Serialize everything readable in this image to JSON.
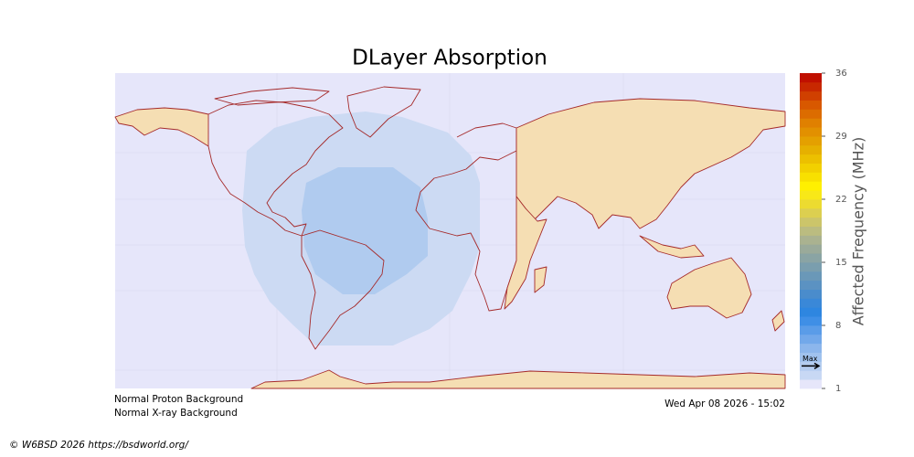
{
  "title": "DLayer Absorption",
  "colorbar": {
    "label": "Affected Frequency (MHz)",
    "lim": [
      1,
      36
    ],
    "ticks": [
      1,
      8,
      15,
      22,
      29,
      36
    ],
    "colors": [
      "#e6e6fa",
      "#c8d8f4",
      "#b4cdf0",
      "#a0c2ee",
      "#8cb6ec",
      "#72a8ea",
      "#5a9ce8",
      "#3f8fe6",
      "#2e86e0",
      "#3a88d8",
      "#4a8ccc",
      "#5b92c2",
      "#6a98b8",
      "#7a9eae",
      "#8aa4a4",
      "#9aaa9a",
      "#aab290",
      "#bbbc80",
      "#ccc56a",
      "#dccf50",
      "#ecdb30",
      "#f8e818",
      "#fff000",
      "#f8e000",
      "#f2d000",
      "#ecc000",
      "#e6b000",
      "#e4a000",
      "#e29000",
      "#e08000",
      "#dc6c00",
      "#d85800",
      "#d04000",
      "#c82800",
      "#c01000"
    ],
    "marker": {
      "label": "Max",
      "value": 3.5
    }
  },
  "status": {
    "proton": "Normal Proton Background",
    "xray": "Normal X-ray Background",
    "timestamp": "Wed Apr 08 2026 - 15:02"
  },
  "credit": "© W6BSD 2026 https://bsdworld.org/"
}
